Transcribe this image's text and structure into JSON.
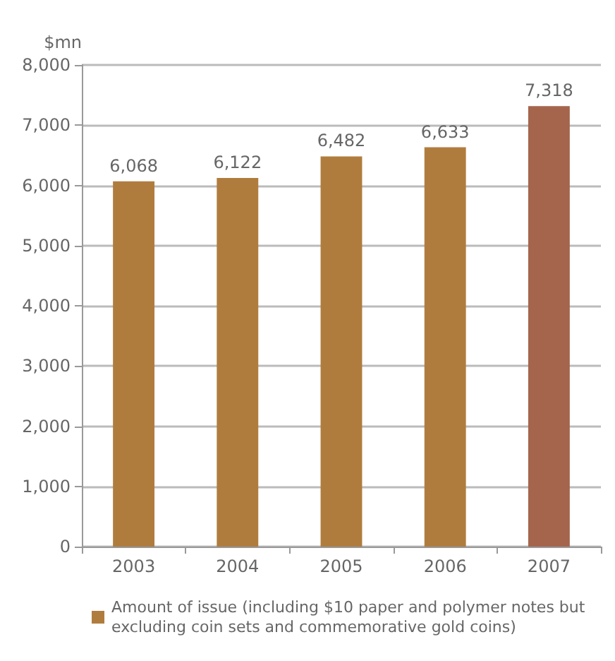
{
  "chart_data": {
    "type": "bar",
    "ylabel": "$mn",
    "categories": [
      "2003",
      "2004",
      "2005",
      "2006",
      "2007"
    ],
    "series": [
      {
        "name": "Amount of issue (including $10 paper and polymer notes but excluding coin sets and commemorative gold coins)",
        "color": "#b07c3e",
        "colors": [
          "#b07c3e",
          "#b07c3e",
          "#b07c3e",
          "#b07c3e",
          "#a5654c"
        ],
        "values": [
          6068,
          6122,
          6482,
          6633,
          7318
        ],
        "value_labels": [
          "6,068",
          "6,122",
          "6,482",
          "6,633",
          "7,318"
        ]
      }
    ],
    "ylim": [
      0,
      8000
    ],
    "yticks": [
      {
        "value": 0,
        "label": "0"
      },
      {
        "value": 1000,
        "label": "1,000"
      },
      {
        "value": 2000,
        "label": "2,000"
      },
      {
        "value": 3000,
        "label": "3,000"
      },
      {
        "value": 4000,
        "label": "4,000"
      },
      {
        "value": 5000,
        "label": "5,000"
      },
      {
        "value": 6000,
        "label": "6,000"
      },
      {
        "value": 7000,
        "label": "7,000"
      },
      {
        "value": 8000,
        "label": "8,000"
      }
    ],
    "grid": "y",
    "legend": "bottom"
  }
}
